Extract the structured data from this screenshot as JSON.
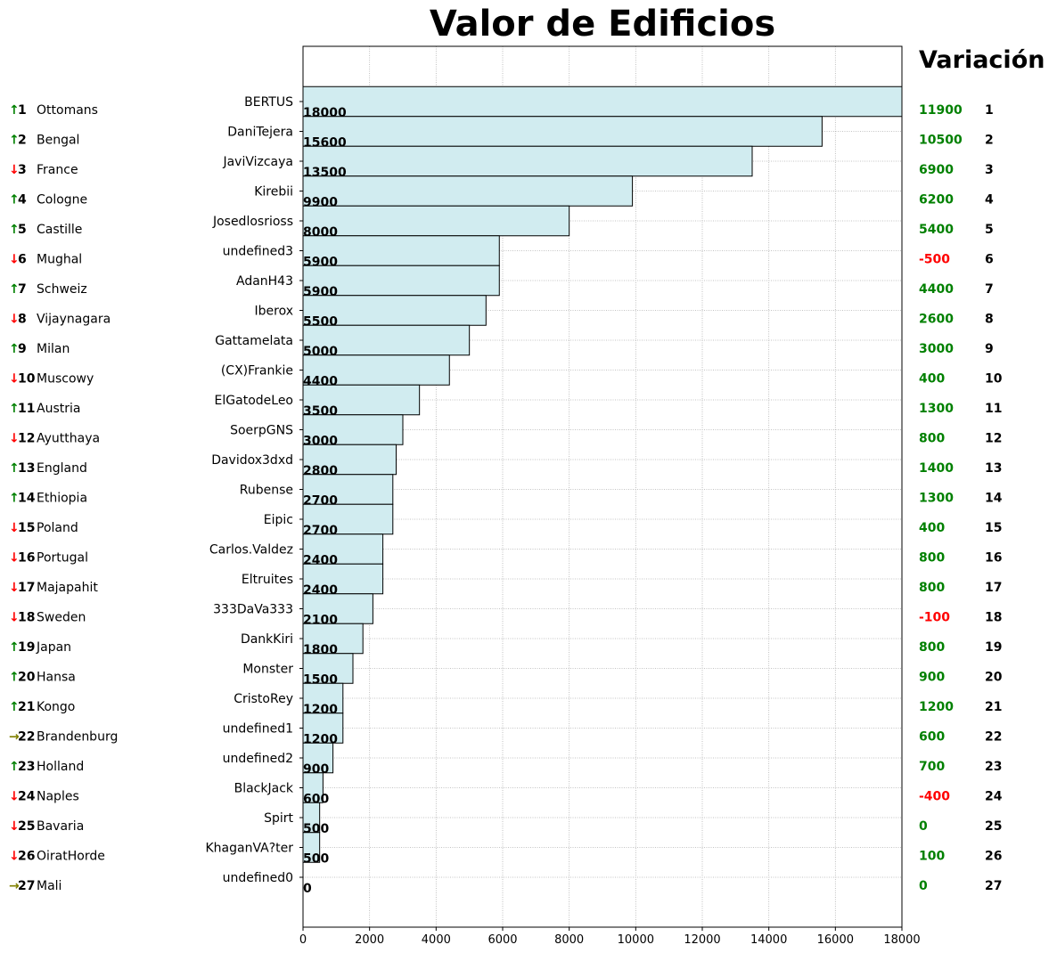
{
  "title": "Valor de Edificios",
  "variation_title": "Variación",
  "colors": {
    "bar_fill": "#d1ecf0",
    "bar_stroke": "#000000",
    "up": "#008000",
    "down": "#ff0000",
    "same": "#808000",
    "positive_variation": "#008000",
    "negative_variation": "#ff0000",
    "grid": "#b0b0b0"
  },
  "chart_data": {
    "type": "bar",
    "orientation": "horizontal",
    "title": "Valor de Edificios",
    "xlim": [
      0,
      18000
    ],
    "x_ticks": [
      0,
      2000,
      4000,
      6000,
      8000,
      10000,
      12000,
      14000,
      16000,
      18000
    ],
    "grid": true,
    "categories": [
      "BERTUS",
      "DaniTejera",
      "JaviVizcaya",
      "Kirebii",
      "Josedlosrioss",
      "undefined3",
      "AdanH43",
      "Iberox",
      "Gattamelata",
      "(CX)Frankie",
      "ElGatodeLeo",
      "SoerpGNS",
      "Davidox3dxd",
      "Rubense",
      "Eipic",
      "Carlos.Valdez",
      "Eltruites",
      "333DaVa333",
      "DankKiri",
      "Monster",
      "CristoRey",
      "undefined1",
      "undefined2",
      "BlackJack",
      "Spirt",
      "KhaganVA?ter",
      "undefined0"
    ],
    "values": [
      18000,
      15600,
      13500,
      9900,
      8000,
      5900,
      5900,
      5500,
      5000,
      4400,
      3500,
      3000,
      2800,
      2700,
      2700,
      2400,
      2400,
      2100,
      1800,
      1500,
      1200,
      1200,
      900,
      600,
      500,
      500,
      0
    ],
    "value_labels": [
      "18000",
      "15600",
      "13500",
      "9900",
      "8000",
      "5900",
      "5900",
      "5500",
      "5000",
      "4400",
      "3500",
      "3000",
      "2800",
      "2700",
      "2700",
      "2400",
      "2400",
      "2100",
      "1800",
      "1500",
      "1200",
      "1200",
      "900",
      "600",
      "500",
      "500",
      "0"
    ],
    "nations": [
      "Ottomans",
      "Bengal",
      "France",
      "Cologne",
      "Castille",
      "Mughal",
      "Schweiz",
      "Vijaynagara",
      "Milan",
      "Muscowy",
      "Austria",
      "Ayutthaya",
      "England",
      "Ethiopia",
      "Poland",
      "Portugal",
      "Majapahit",
      "Sweden",
      "Japan",
      "Hansa",
      "Kongo",
      "Brandenburg",
      "Holland",
      "Naples",
      "Bavaria",
      "OiratHorde",
      "Mali"
    ],
    "ranks": [
      "1",
      "2",
      "3",
      "4",
      "5",
      "6",
      "7",
      "8",
      "9",
      "10",
      "11",
      "12",
      "13",
      "14",
      "15",
      "16",
      "17",
      "18",
      "19",
      "20",
      "21",
      "22",
      "23",
      "24",
      "25",
      "26",
      "27"
    ],
    "trend": [
      "up",
      "up",
      "down",
      "up",
      "up",
      "down",
      "up",
      "down",
      "up",
      "down",
      "up",
      "down",
      "up",
      "up",
      "down",
      "down",
      "down",
      "down",
      "up",
      "up",
      "up",
      "same",
      "up",
      "down",
      "down",
      "down",
      "same"
    ],
    "trend_glyphs": {
      "up": "↑",
      "down": "↓",
      "same": "→"
    },
    "variation": [
      "11900",
      "10500",
      "6900",
      "6200",
      "5400",
      "-500",
      "4400",
      "2600",
      "3000",
      "400",
      "1300",
      "800",
      "1400",
      "1300",
      "400",
      "800",
      "800",
      "-100",
      "800",
      "900",
      "1200",
      "600",
      "700",
      "-400",
      "0",
      "100",
      "0"
    ],
    "variation_rank": [
      "1",
      "2",
      "3",
      "4",
      "5",
      "6",
      "7",
      "8",
      "9",
      "10",
      "11",
      "12",
      "13",
      "14",
      "15",
      "16",
      "17",
      "18",
      "19",
      "20",
      "21",
      "22",
      "23",
      "24",
      "25",
      "26",
      "27"
    ]
  }
}
